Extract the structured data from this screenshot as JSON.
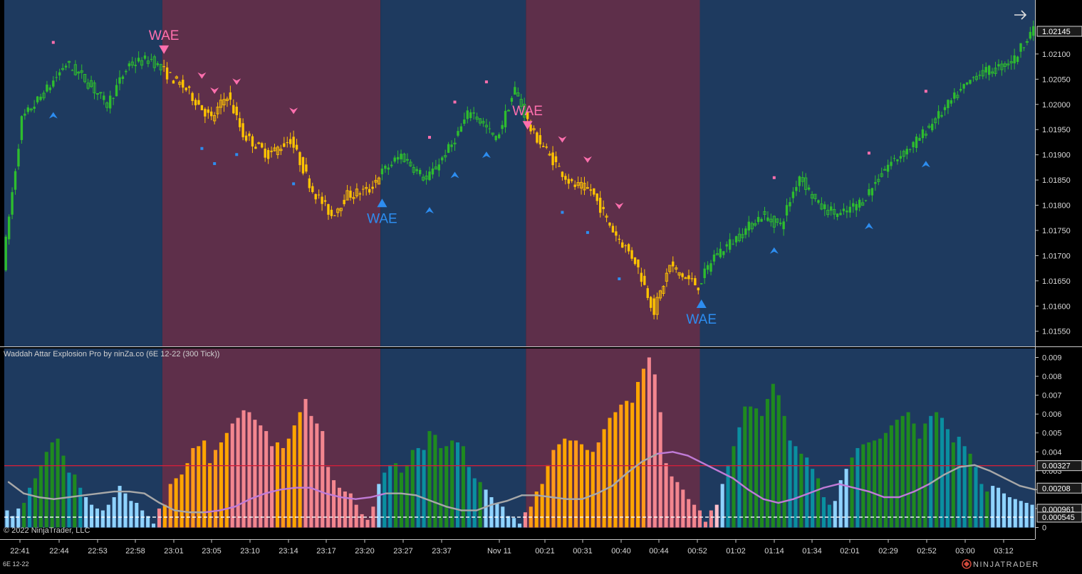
{
  "instrument_tag": "6E 12-22",
  "indicator_title": "Waddah Attar Explosion Pro by ninZa.co (6E 12-22 (300 Tick))",
  "copyright": "© 2022 NinjaTrader, LLC",
  "brand": "NINJATRADER",
  "signal_label": "WAE",
  "colors": {
    "background": "#000000",
    "bull_zone": "#1e3a5f",
    "bear_zone": "#5e2f4a",
    "bull_candle": "#2ebd2e",
    "bear_candle": "#ffc400",
    "up_marker": "#2d8df0",
    "down_marker": "#ff6fae",
    "hist_up_strong": "#1f8a1f",
    "hist_up_weak": "#0a8fa0",
    "hist_down_strong": "#ffa500",
    "hist_down_weak": "#f3868f",
    "deadzone": "#8fd3ff",
    "deadzone_bear": "#ffc0cb",
    "explosion_line": "#c07bd6",
    "threshold_line": "#d0203a",
    "dead_line": "#ffffff"
  },
  "chart_data": [
    {
      "type": "candlestick",
      "name": "price",
      "y_ticks": [
        "1.02100",
        "1.02050",
        "1.02000",
        "1.01950",
        "1.01900",
        "1.01850",
        "1.01800",
        "1.01750",
        "1.01700",
        "1.01650",
        "1.01600",
        "1.01550"
      ],
      "ylim": [
        1.0151,
        1.0218
      ],
      "last_price": "1.02145",
      "x_ticks": [
        "22:41",
        "22:44",
        "22:53",
        "22:58",
        "23:01",
        "23:05",
        "23:10",
        "23:14",
        "23:17",
        "23:20",
        "23:27",
        "23:37",
        "Nov 11",
        "00:21",
        "00:31",
        "00:40",
        "00:44",
        "00:52",
        "01:02",
        "01:14",
        "01:34",
        "02:01",
        "02:29",
        "02:52",
        "03:00",
        "03:12"
      ],
      "zones": [
        {
          "trend": "bull",
          "from_bar": 0,
          "to_bar": 49
        },
        {
          "trend": "bear",
          "from_bar": 50,
          "to_bar": 118
        },
        {
          "trend": "bull",
          "from_bar": 119,
          "to_bar": 164
        },
        {
          "trend": "bear",
          "from_bar": 165,
          "to_bar": 219
        },
        {
          "trend": "bull",
          "from_bar": 220,
          "to_bar": 325
        }
      ],
      "wae_signals": [
        {
          "bar": 50,
          "dir": "down",
          "price": 1.021
        },
        {
          "bar": 119,
          "dir": "up",
          "price": 1.0183
        },
        {
          "bar": 165,
          "dir": "down",
          "price": 1.0195
        },
        {
          "bar": 220,
          "dir": "up",
          "price": 1.0163
        }
      ],
      "trend_markers": [
        {
          "bar": 15,
          "dir": "up"
        },
        {
          "bar": 62,
          "dir": "down"
        },
        {
          "bar": 66,
          "dir": "down"
        },
        {
          "bar": 73,
          "dir": "down"
        },
        {
          "bar": 91,
          "dir": "down"
        },
        {
          "bar": 134,
          "dir": "up"
        },
        {
          "bar": 142,
          "dir": "up"
        },
        {
          "bar": 152,
          "dir": "up"
        },
        {
          "bar": 176,
          "dir": "down"
        },
        {
          "bar": 184,
          "dir": "down"
        },
        {
          "bar": 194,
          "dir": "down"
        },
        {
          "bar": 243,
          "dir": "up"
        },
        {
          "bar": 273,
          "dir": "up"
        },
        {
          "bar": 291,
          "dir": "up"
        }
      ]
    },
    {
      "type": "histogram",
      "name": "Waddah Attar Explosion Pro",
      "y_ticks": [
        "0.009",
        "0.008",
        "0.007",
        "0.006",
        "0.005",
        "0.004",
        "0.003",
        "0.002",
        "0.001",
        "0"
      ],
      "ylim": [
        0,
        0.0091
      ],
      "value_tags": [
        {
          "label": "0.00327",
          "value": 0.00327,
          "kind": "threshold"
        },
        {
          "label": "0.00208",
          "value": 0.00208,
          "kind": "explosion"
        },
        {
          "label": "0.000961",
          "value": 0.000961,
          "kind": "deadzone"
        },
        {
          "label": "0.000545",
          "value": 0.000545,
          "kind": "dead"
        }
      ],
      "bars": [
        0.0009,
        0.0006,
        0.001,
        0.0013,
        0.0021,
        0.0026,
        0.0033,
        0.004,
        0.0045,
        0.0047,
        0.0038,
        0.0029,
        0.0028,
        0.0021,
        0.0016,
        0.0012,
        0.001,
        0.0009,
        0.0012,
        0.0016,
        0.0022,
        0.0018,
        0.0014,
        0.0013,
        0.0009,
        0.0006,
        0.0002,
        0.001,
        0.0012,
        0.0023,
        0.0026,
        0.0028,
        0.0034,
        0.0042,
        0.0043,
        0.0046,
        0.0034,
        0.0041,
        0.0045,
        0.005,
        0.0055,
        0.0058,
        0.0062,
        0.0061,
        0.0057,
        0.0054,
        0.0051,
        0.0043,
        0.0045,
        0.0042,
        0.0047,
        0.0054,
        0.0061,
        0.0068,
        0.0059,
        0.0055,
        0.0051,
        0.0032,
        0.0025,
        0.0021,
        0.0019,
        0.0018,
        0.0012,
        0.0007,
        0.0004,
        0.0011,
        0.0023,
        0.0029,
        0.0033,
        0.0034,
        0.0029,
        0.0033,
        0.0041,
        0.0042,
        0.0041,
        0.0051,
        0.0049,
        0.0042,
        0.0043,
        0.0046,
        0.0045,
        0.0043,
        0.0032,
        0.0026,
        0.0024,
        0.002,
        0.0016,
        0.0013,
        0.0011,
        0.0006,
        0.0005,
        0.0002,
        0.0008,
        0.0011,
        0.0019,
        0.0023,
        0.0033,
        0.0041,
        0.0044,
        0.0047,
        0.0046,
        0.0046,
        0.0044,
        0.0041,
        0.004,
        0.0045,
        0.0052,
        0.0058,
        0.0061,
        0.0065,
        0.0067,
        0.0066,
        0.0077,
        0.0084,
        0.009,
        0.0081,
        0.0061,
        0.0034,
        0.0027,
        0.0024,
        0.002,
        0.0015,
        0.0012,
        0.0009,
        0.0003,
        0.0009,
        0.0012,
        0.0023,
        0.0033,
        0.0043,
        0.0053,
        0.0064,
        0.0064,
        0.0063,
        0.0059,
        0.0068,
        0.0076,
        0.007,
        0.0059,
        0.0046,
        0.0043,
        0.0039,
        0.0037,
        0.0031,
        0.0026,
        0.0016,
        0.0012,
        0.0014,
        0.0025,
        0.0031,
        0.0037,
        0.0042,
        0.0044,
        0.0045,
        0.0046,
        0.0047,
        0.005,
        0.0054,
        0.0057,
        0.0059,
        0.0061,
        0.0055,
        0.0047,
        0.0055,
        0.0059,
        0.0061,
        0.0058,
        0.0052,
        0.0045,
        0.0048,
        0.0043,
        0.0039,
        0.0032,
        0.0023,
        0.0019,
        0.0022,
        0.0021,
        0.0018,
        0.0016,
        0.0015,
        0.0014,
        0.0013,
        0.0012
      ],
      "bar_kinds": "dddggGGGGGGgggdddddddddddddbBBBBBBBBBBBBbbbbbbbbBBBBBbbbbbbbbbbbbbdgggGGGgggGGGGgggggdddddddbBBBBBBBBBBBBBBBBBBBBBbbbbbbbbbbbbrdgggGGGGgGGgggggggggdddggGGGGGGGGGGGGgggggggggggdddddddddd",
      "explosion_line": [
        0.0024,
        0.0018,
        0.0016,
        0.0015,
        0.0016,
        0.0017,
        0.0018,
        0.0019,
        0.0019,
        0.0018,
        0.0013,
        0.0009,
        0.0008,
        0.0008,
        0.0009,
        0.0011,
        0.0015,
        0.0018,
        0.002,
        0.0021,
        0.0021,
        0.0018,
        0.0016,
        0.0015,
        0.0016,
        0.0018,
        0.0018,
        0.0017,
        0.0014,
        0.0011,
        0.0009,
        0.0009,
        0.0012,
        0.0014,
        0.0017,
        0.0017,
        0.0016,
        0.0015,
        0.0015,
        0.0018,
        0.0022,
        0.0029,
        0.0035,
        0.0039,
        0.004,
        0.0038,
        0.0034,
        0.003,
        0.0026,
        0.002,
        0.0015,
        0.0013,
        0.0015,
        0.0018,
        0.0021,
        0.0023,
        0.0021,
        0.0019,
        0.0016,
        0.0016,
        0.0019,
        0.0023,
        0.0028,
        0.0032,
        0.0033,
        0.003,
        0.0026,
        0.0022,
        0.002
      ],
      "explosion_line_bear_segments": [
        [
          13,
          24
        ],
        [
          43,
          60
        ]
      ]
    }
  ]
}
